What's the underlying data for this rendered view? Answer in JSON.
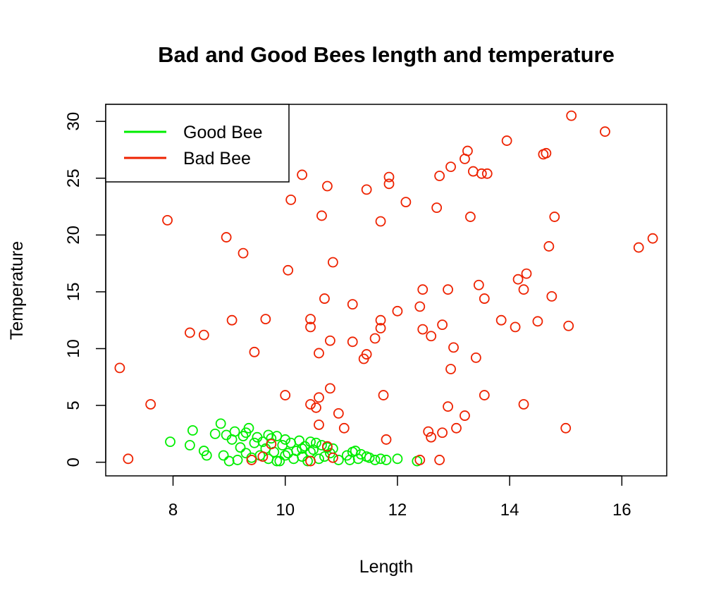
{
  "chart_data": {
    "type": "scatter",
    "title": "Bad and Good Bees length and temperature",
    "xlabel": "Length",
    "ylabel": "Temperature",
    "xlim": [
      6.8,
      16.8
    ],
    "ylim": [
      -1.2,
      31.5
    ],
    "xticks": [
      8,
      10,
      12,
      14,
      16
    ],
    "yticks": [
      0,
      5,
      10,
      15,
      20,
      25,
      30
    ],
    "grid": false,
    "legend": {
      "position": "top-left",
      "entries": [
        {
          "label": "Good Bee",
          "color": "#00ee00"
        },
        {
          "label": "Bad Bee",
          "color": "#ee2200"
        }
      ]
    },
    "series": [
      {
        "name": "Good Bee",
        "color": "#00ee00",
        "points": [
          [
            7.95,
            1.8
          ],
          [
            8.35,
            2.8
          ],
          [
            8.3,
            1.5
          ],
          [
            8.55,
            1.0
          ],
          [
            8.6,
            0.6
          ],
          [
            8.75,
            2.5
          ],
          [
            8.9,
            0.6
          ],
          [
            8.85,
            3.4
          ],
          [
            8.95,
            2.4
          ],
          [
            9.0,
            0.1
          ],
          [
            9.05,
            2.0
          ],
          [
            9.1,
            2.7
          ],
          [
            9.15,
            0.2
          ],
          [
            9.2,
            1.3
          ],
          [
            9.25,
            2.3
          ],
          [
            9.3,
            2.6
          ],
          [
            9.35,
            3.0
          ],
          [
            9.4,
            0.4
          ],
          [
            9.45,
            1.7
          ],
          [
            9.5,
            2.2
          ],
          [
            9.55,
            0.6
          ],
          [
            9.6,
            1.8
          ],
          [
            9.65,
            1.2
          ],
          [
            9.7,
            0.3
          ],
          [
            9.75,
            2.1
          ],
          [
            9.8,
            0.9
          ],
          [
            9.85,
            2.3
          ],
          [
            9.9,
            0.1
          ],
          [
            9.95,
            1.5
          ],
          [
            10.0,
            2.0
          ],
          [
            10.05,
            0.8
          ],
          [
            10.1,
            1.7
          ],
          [
            10.15,
            0.3
          ],
          [
            10.2,
            1.0
          ],
          [
            10.25,
            1.9
          ],
          [
            10.3,
            0.5
          ],
          [
            10.35,
            1.4
          ],
          [
            10.4,
            0.1
          ],
          [
            10.45,
            1.8
          ],
          [
            10.5,
            1.1
          ],
          [
            10.55,
            1.7
          ],
          [
            10.6,
            0.3
          ],
          [
            10.65,
            1.5
          ],
          [
            10.7,
            0.5
          ],
          [
            10.75,
            1.3
          ],
          [
            10.8,
            0.8
          ],
          [
            10.85,
            1.2
          ],
          [
            10.95,
            0.2
          ],
          [
            11.1,
            0.6
          ],
          [
            11.2,
            0.9
          ],
          [
            11.25,
            1.0
          ],
          [
            11.3,
            0.3
          ],
          [
            11.35,
            0.7
          ],
          [
            11.45,
            0.5
          ],
          [
            11.5,
            0.4
          ],
          [
            11.6,
            0.2
          ],
          [
            11.7,
            0.3
          ],
          [
            11.8,
            0.2
          ],
          [
            12.0,
            0.3
          ],
          [
            12.35,
            0.1
          ],
          [
            10.0,
            0.6
          ],
          [
            9.3,
            0.8
          ],
          [
            9.85,
            0.1
          ],
          [
            10.45,
            0.9
          ],
          [
            11.15,
            0.2
          ],
          [
            9.7,
            2.4
          ],
          [
            10.3,
            1.2
          ]
        ]
      },
      {
        "name": "Bad Bee",
        "color": "#ee2200",
        "points": [
          [
            7.05,
            8.3
          ],
          [
            7.2,
            0.3
          ],
          [
            7.6,
            5.1
          ],
          [
            7.9,
            21.3
          ],
          [
            8.3,
            11.4
          ],
          [
            8.55,
            11.2
          ],
          [
            8.95,
            19.8
          ],
          [
            9.05,
            12.5
          ],
          [
            9.25,
            18.4
          ],
          [
            9.45,
            9.7
          ],
          [
            9.6,
            0.5
          ],
          [
            9.65,
            12.6
          ],
          [
            9.75,
            1.6
          ],
          [
            9.4,
            0.2
          ],
          [
            10.0,
            5.9
          ],
          [
            10.05,
            16.9
          ],
          [
            10.1,
            23.1
          ],
          [
            10.3,
            25.3
          ],
          [
            10.45,
            12.6
          ],
          [
            10.45,
            11.9
          ],
          [
            10.45,
            5.1
          ],
          [
            10.55,
            4.8
          ],
          [
            10.6,
            9.6
          ],
          [
            10.6,
            5.7
          ],
          [
            10.6,
            3.3
          ],
          [
            10.65,
            21.7
          ],
          [
            10.7,
            14.4
          ],
          [
            10.75,
            24.3
          ],
          [
            10.8,
            10.7
          ],
          [
            10.8,
            6.5
          ],
          [
            10.85,
            17.6
          ],
          [
            10.95,
            4.3
          ],
          [
            10.45,
            0.1
          ],
          [
            10.75,
            1.4
          ],
          [
            10.85,
            0.4
          ],
          [
            11.05,
            3.0
          ],
          [
            11.2,
            13.9
          ],
          [
            11.2,
            10.6
          ],
          [
            11.4,
            9.1
          ],
          [
            11.45,
            9.5
          ],
          [
            11.45,
            24.0
          ],
          [
            11.6,
            10.9
          ],
          [
            11.7,
            12.5
          ],
          [
            11.7,
            11.8
          ],
          [
            11.7,
            21.2
          ],
          [
            11.75,
            5.9
          ],
          [
            11.8,
            2.0
          ],
          [
            11.85,
            24.5
          ],
          [
            11.85,
            25.1
          ],
          [
            12.0,
            13.3
          ],
          [
            12.15,
            22.9
          ],
          [
            12.4,
            0.2
          ],
          [
            12.4,
            13.7
          ],
          [
            12.45,
            15.2
          ],
          [
            12.45,
            11.7
          ],
          [
            12.55,
            2.7
          ],
          [
            12.6,
            2.2
          ],
          [
            12.6,
            11.1
          ],
          [
            12.7,
            22.4
          ],
          [
            12.75,
            25.2
          ],
          [
            12.75,
            0.2
          ],
          [
            12.8,
            2.6
          ],
          [
            12.8,
            12.1
          ],
          [
            12.9,
            4.9
          ],
          [
            12.9,
            15.2
          ],
          [
            12.95,
            26.0
          ],
          [
            12.95,
            8.2
          ],
          [
            13.0,
            10.1
          ],
          [
            13.05,
            3.0
          ],
          [
            13.2,
            4.1
          ],
          [
            13.2,
            26.7
          ],
          [
            13.25,
            27.4
          ],
          [
            13.3,
            21.6
          ],
          [
            13.35,
            25.6
          ],
          [
            13.4,
            9.2
          ],
          [
            13.45,
            15.6
          ],
          [
            13.5,
            25.4
          ],
          [
            13.55,
            14.4
          ],
          [
            13.55,
            5.9
          ],
          [
            13.6,
            25.4
          ],
          [
            13.85,
            12.5
          ],
          [
            13.95,
            28.3
          ],
          [
            14.1,
            11.9
          ],
          [
            14.15,
            16.1
          ],
          [
            14.25,
            5.1
          ],
          [
            14.25,
            15.2
          ],
          [
            14.3,
            16.6
          ],
          [
            14.5,
            12.4
          ],
          [
            14.6,
            27.1
          ],
          [
            14.65,
            27.2
          ],
          [
            14.7,
            19.0
          ],
          [
            14.75,
            14.6
          ],
          [
            14.8,
            21.6
          ],
          [
            15.0,
            3.0
          ],
          [
            15.05,
            12.0
          ],
          [
            15.1,
            30.5
          ],
          [
            15.7,
            29.1
          ],
          [
            16.3,
            18.9
          ],
          [
            16.55,
            19.7
          ]
        ]
      }
    ]
  }
}
